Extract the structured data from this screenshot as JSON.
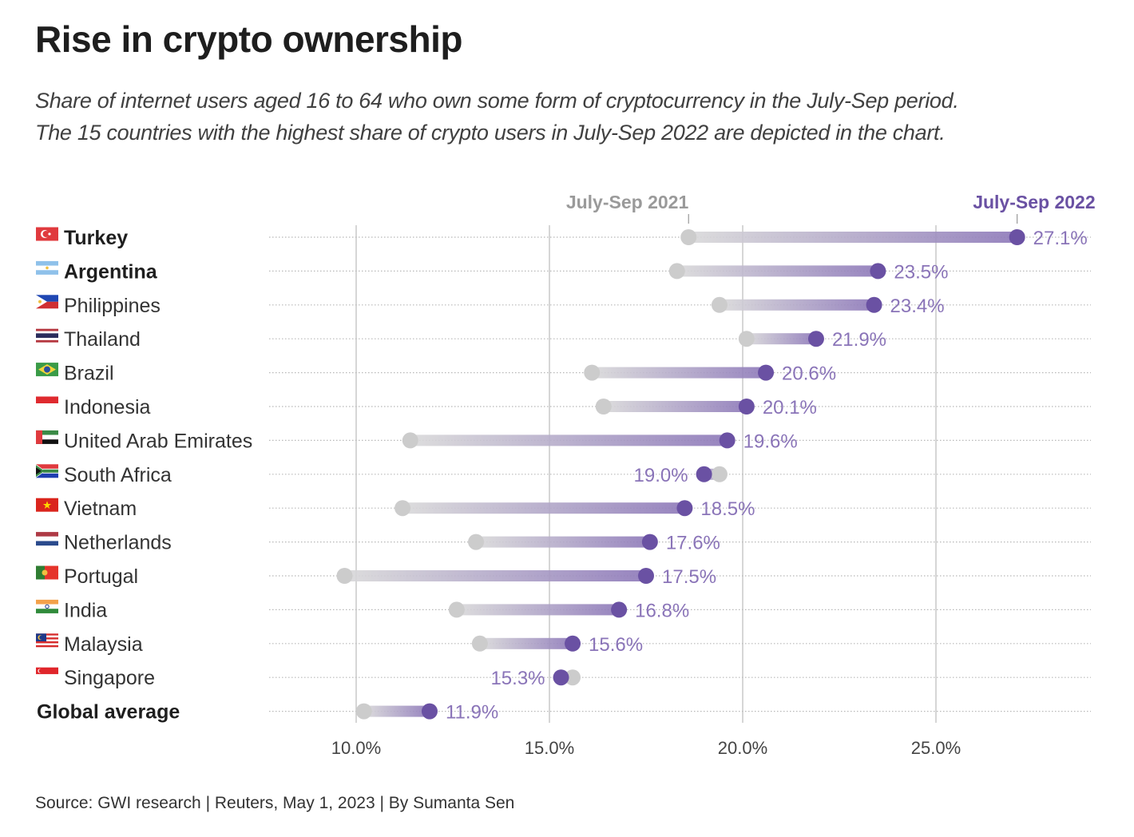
{
  "title": "Rise in crypto ownership",
  "subtitle_lines": [
    "Share of internet users aged 16 to 64 who own some form of cryptocurrency in the July-Sep period.",
    "The 15 countries with the highest share of crypto users in July-Sep 2022 are depicted in the chart."
  ],
  "source": "Source: GWI research | Reuters, May 1, 2023 | By Sumanta Sen",
  "colors": {
    "series_2021": "#cccccc",
    "series_2022": "#6a51a3",
    "label_2022": "#8a74b8",
    "legend_2021": "#9a9a9a"
  },
  "chart_data": {
    "type": "dumbbell",
    "title": "Rise in crypto ownership",
    "xlabel": "",
    "ylabel": "",
    "xlim": [
      7.8,
      29.0
    ],
    "x_ticks": [
      10,
      15,
      20,
      25
    ],
    "x_tick_labels": [
      "10.0%",
      "15.0%",
      "20.0%",
      "25.0%"
    ],
    "grid": true,
    "legend": [
      {
        "name": "July-Sep 2021",
        "anchor_value": 18.6,
        "color": "#9a9a9a"
      },
      {
        "name": "July-Sep 2022",
        "anchor_value": 27.1,
        "color": "#6a51a3"
      }
    ],
    "categories": [
      "Turkey",
      "Argentina",
      "Philippines",
      "Thailand",
      "Brazil",
      "Indonesia",
      "United Arab Emirates",
      "South Africa",
      "Vietnam",
      "Netherlands",
      "Portugal",
      "India",
      "Malaysia",
      "Singapore",
      "Global average"
    ],
    "bold_categories": [
      "Turkey",
      "Argentina",
      "Global average"
    ],
    "flags": [
      "turkey-flag",
      "argentina-flag",
      "philippines-flag",
      "thailand-flag",
      "brazil-flag",
      "indonesia-flag",
      "uae-flag",
      "south-africa-flag",
      "vietnam-flag",
      "netherlands-flag",
      "portugal-flag",
      "india-flag",
      "malaysia-flag",
      "singapore-flag",
      null
    ],
    "series": [
      {
        "name": "July-Sep 2021",
        "values": [
          18.6,
          18.3,
          19.4,
          20.1,
          16.1,
          16.4,
          11.4,
          19.4,
          11.2,
          13.1,
          9.7,
          12.6,
          13.2,
          15.6,
          10.2
        ]
      },
      {
        "name": "July-Sep 2022",
        "values": [
          27.1,
          23.5,
          23.4,
          21.9,
          20.6,
          20.1,
          19.6,
          19.0,
          18.5,
          17.6,
          17.5,
          16.8,
          15.6,
          15.3,
          11.9
        ]
      }
    ],
    "value_labels": [
      "27.1%",
      "23.5%",
      "23.4%",
      "21.9%",
      "20.6%",
      "20.1%",
      "19.6%",
      "19.0%",
      "18.5%",
      "17.6%",
      "17.5%",
      "16.8%",
      "15.6%",
      "15.3%",
      "11.9%"
    ]
  }
}
